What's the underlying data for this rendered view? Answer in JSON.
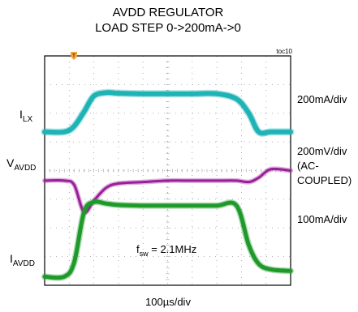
{
  "chart_data": {
    "type": "line",
    "title_lines": [
      "AVDD REGULATOR",
      "LOAD STEP 0->200mA->0"
    ],
    "figure_id": "toc10",
    "x_scale": "100µs/div",
    "x_divisions": 10,
    "y_divisions": 8,
    "grid": true,
    "trigger_marker": "T",
    "annotation": {
      "main": "f",
      "sub": "sw",
      "rest": " = 2.1MHz"
    },
    "x": [
      0,
      0.8,
      1.2,
      1.6,
      2.0,
      2.5,
      3.0,
      4.0,
      5.0,
      6.0,
      7.0,
      7.8,
      8.3,
      8.7,
      9.2,
      10.0
    ],
    "series": [
      {
        "name": "I_LX",
        "label_main": "I",
        "label_sub": "LX",
        "scale": "200mA/div",
        "color": "#1fb3b6",
        "y_div": [
          5.35,
          5.35,
          5.55,
          6.05,
          6.6,
          6.72,
          6.7,
          6.68,
          6.68,
          6.68,
          6.68,
          6.5,
          6.0,
          5.35,
          5.35,
          5.35
        ]
      },
      {
        "name": "V_AVDD",
        "label_main": "V",
        "label_sub": "AVDD",
        "scale": "200mV/div",
        "scale_note": [
          "(AC-",
          "COUPLED)"
        ],
        "color": "#9b1f9a",
        "y_div": [
          3.65,
          3.65,
          3.5,
          2.55,
          2.95,
          3.4,
          3.55,
          3.6,
          3.65,
          3.65,
          3.65,
          3.65,
          3.6,
          3.75,
          4.05,
          4.0
        ]
      },
      {
        "name": "I_AVDD",
        "label_main": "I",
        "label_sub": "AVDD",
        "scale": "100mA/div",
        "color": "#1f9a2a",
        "y_div": [
          0.3,
          0.3,
          0.8,
          2.55,
          2.9,
          2.85,
          2.8,
          2.78,
          2.78,
          2.78,
          2.78,
          2.78,
          1.4,
          0.75,
          0.55,
          0.5
        ]
      }
    ]
  }
}
